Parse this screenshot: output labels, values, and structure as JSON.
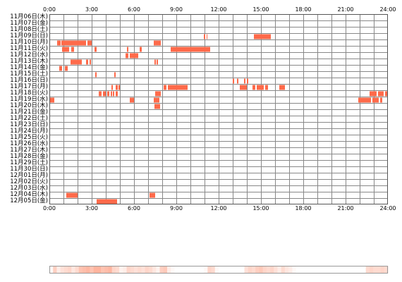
{
  "colors": {
    "activity": "#ff6a4a",
    "grid": "#888888",
    "frame": "#555555",
    "background": "#ffffff",
    "heat_strong": "#ffb49e",
    "heat_light": "#ffe6dc"
  },
  "chart_data": {
    "type": "heatmap",
    "x_ticks": [
      "0:00",
      "3:00",
      "6:00",
      "9:00",
      "12:00",
      "15:00",
      "18:00",
      "21:00",
      "24:00"
    ],
    "xlim": [
      0,
      24
    ],
    "grid": true,
    "days": [
      {
        "label": "11月06日(木)",
        "spans": []
      },
      {
        "label": "11月07日(金)",
        "spans": []
      },
      {
        "label": "11月08日(土)",
        "spans": []
      },
      {
        "label": "11月09日(日)",
        "spans": [
          [
            10.95,
            11.05
          ],
          [
            11.15,
            11.2
          ],
          [
            14.5,
            15.7
          ]
        ]
      },
      {
        "label": "11月10日(月)",
        "spans": [
          [
            0.55,
            0.8
          ],
          [
            0.85,
            2.6
          ],
          [
            2.7,
            3.0
          ],
          [
            7.4,
            7.9
          ]
        ]
      },
      {
        "label": "11月11日(火)",
        "spans": [
          [
            0.9,
            1.4
          ],
          [
            1.55,
            1.75
          ],
          [
            3.2,
            3.35
          ],
          [
            5.5,
            5.6
          ],
          [
            6.4,
            6.55
          ],
          [
            8.6,
            11.4
          ]
        ]
      },
      {
        "label": "11月12日(水)",
        "spans": [
          [
            5.4,
            5.6
          ],
          [
            5.7,
            6.3
          ]
        ]
      },
      {
        "label": "11月13日(木)",
        "spans": [
          [
            1.5,
            2.3
          ],
          [
            2.6,
            2.75
          ],
          [
            2.85,
            2.95
          ],
          [
            7.45,
            7.55
          ],
          [
            7.6,
            7.7
          ]
        ]
      },
      {
        "label": "11月14日(金)",
        "spans": [
          [
            0.7,
            0.9
          ],
          [
            1.1,
            1.3
          ]
        ]
      },
      {
        "label": "11月15日(土)",
        "spans": [
          [
            3.25,
            3.35
          ],
          [
            4.6,
            4.7
          ]
        ]
      },
      {
        "label": "11月16日(日)",
        "spans": [
          [
            13.0,
            13.1
          ],
          [
            13.3,
            13.4
          ],
          [
            13.8,
            13.9
          ],
          [
            14.0,
            14.1
          ]
        ]
      },
      {
        "label": "11月17日(月)",
        "spans": [
          [
            4.4,
            4.5
          ],
          [
            4.7,
            4.85
          ],
          [
            4.9,
            5.0
          ],
          [
            8.1,
            8.3
          ],
          [
            8.4,
            9.8
          ],
          [
            13.5,
            14.0
          ],
          [
            14.4,
            14.6
          ],
          [
            14.7,
            15.2
          ],
          [
            15.3,
            15.5
          ],
          [
            16.3,
            16.7
          ]
        ]
      },
      {
        "label": "11月18日(火)",
        "spans": [
          [
            3.5,
            3.7
          ],
          [
            3.8,
            4.0
          ],
          [
            4.1,
            4.25
          ],
          [
            4.35,
            4.45
          ],
          [
            4.5,
            4.6
          ],
          [
            4.7,
            4.85
          ],
          [
            7.5,
            7.9
          ],
          [
            22.7,
            23.2
          ],
          [
            23.3,
            23.7
          ],
          [
            23.8,
            23.95
          ]
        ]
      },
      {
        "label": "11月19日(水)",
        "spans": [
          [
            0.0,
            0.35
          ],
          [
            5.7,
            6.0
          ],
          [
            7.4,
            7.8
          ],
          [
            21.9,
            22.8
          ],
          [
            22.9,
            23.35
          ],
          [
            23.45,
            23.6
          ]
        ]
      },
      {
        "label": "11月20日(木)",
        "spans": [
          [
            7.45,
            7.85
          ]
        ]
      },
      {
        "label": "11月21日(金)",
        "spans": []
      },
      {
        "label": "11月22日(土)",
        "spans": []
      },
      {
        "label": "11月23日(日)",
        "spans": []
      },
      {
        "label": "11月24日(月)",
        "spans": []
      },
      {
        "label": "11月25日(火)",
        "spans": []
      },
      {
        "label": "11月26日(水)",
        "spans": []
      },
      {
        "label": "11月27日(木)",
        "spans": []
      },
      {
        "label": "11月28日(金)",
        "spans": []
      },
      {
        "label": "11月29日(土)",
        "spans": []
      },
      {
        "label": "11月30日(日)",
        "spans": []
      },
      {
        "label": "12月01日(月)",
        "spans": []
      },
      {
        "label": "12月02日(火)",
        "spans": []
      },
      {
        "label": "12月03日(水)",
        "spans": []
      },
      {
        "label": "12月04日(木)",
        "spans": [
          [
            1.2,
            2.0
          ],
          [
            7.1,
            7.5
          ]
        ]
      },
      {
        "label": "12月05日(金)",
        "spans": [
          [
            3.35,
            4.8
          ]
        ]
      }
    ],
    "summary_strip": [
      0.05,
      0.4,
      0.15,
      0.25,
      0.3,
      0.35,
      0.2,
      0.3,
      0.5,
      0.55,
      0.6,
      0.5,
      0.65,
      0.7,
      0.5,
      0.55,
      0.6,
      0.35,
      0.3,
      0.1,
      0.15,
      0.35,
      0.3,
      0.25,
      0.3,
      0.25,
      0.35,
      0.3,
      0.2,
      0.1,
      0.4,
      0.45,
      0.15,
      0.05,
      0.0,
      0.0,
      0.0,
      0.0,
      0.0,
      0.0,
      0.0,
      0.0,
      0.05,
      0.35,
      0.3,
      0.05,
      0.0,
      0.0,
      0.0,
      0.0,
      0.0,
      0.0,
      0.0,
      0.25,
      0.35,
      0.3,
      0.4,
      0.45,
      0.35,
      0.3,
      0.35,
      0.25,
      0.15,
      0.3,
      0.2,
      0.15,
      0.05,
      0.0,
      0.0,
      0.0,
      0.0,
      0.0,
      0.0,
      0.0,
      0.0,
      0.0,
      0.0,
      0.0,
      0.0,
      0.0,
      0.0,
      0.0,
      0.0,
      0.0,
      0.0,
      0.0,
      0.3,
      0.35,
      0.3,
      0.3,
      0.35,
      0.3
    ]
  }
}
